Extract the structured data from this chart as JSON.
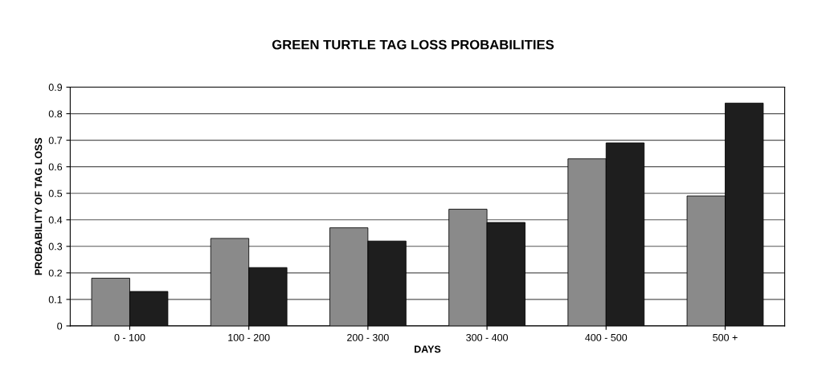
{
  "chart_data": {
    "type": "bar",
    "title": "GREEN TURTLE TAG LOSS PROBABILITIES",
    "xlabel": "DAYS",
    "ylabel": "PROBABILITY OF TAG LOSS",
    "categories": [
      "0 - 100",
      "100 - 200",
      "200 - 300",
      "300 - 400",
      "400 - 500",
      "500 +"
    ],
    "series": [
      {
        "color": "#8a8a8a",
        "values": [
          0.18,
          0.33,
          0.37,
          0.44,
          0.63,
          0.49
        ]
      },
      {
        "color": "#1e1e1e",
        "values": [
          0.13,
          0.22,
          0.32,
          0.39,
          0.69,
          0.84
        ]
      }
    ],
    "ylim": [
      0,
      0.9
    ],
    "yticks": [
      0,
      0.1,
      0.2,
      0.3,
      0.4,
      0.5,
      0.6,
      0.7,
      0.8,
      0.9
    ],
    "grid": "y"
  }
}
